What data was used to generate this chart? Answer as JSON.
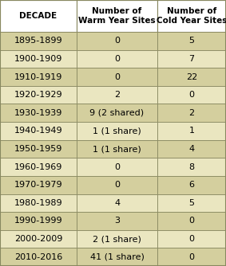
{
  "col_headers": [
    "DECADE",
    "Number of\nWarm Year Sites",
    "Number of\nCold Year Sites"
  ],
  "rows": [
    [
      "1895-1899",
      "0",
      "5"
    ],
    [
      "1900-1909",
      "0",
      "7"
    ],
    [
      "1910-1919",
      "0",
      "22"
    ],
    [
      "1920-1929",
      "2",
      "0"
    ],
    [
      "1930-1939",
      "9 (2 shared)",
      "2"
    ],
    [
      "1940-1949",
      "1 (1 share)",
      "1"
    ],
    [
      "1950-1959",
      "1 (1 share)",
      "4"
    ],
    [
      "1960-1969",
      "0",
      "8"
    ],
    [
      "1970-1979",
      "0",
      "6"
    ],
    [
      "1980-1989",
      "4",
      "5"
    ],
    [
      "1990-1999",
      "3",
      "0"
    ],
    [
      "2000-2009",
      "2 (1 share)",
      "0"
    ],
    [
      "2010-2016",
      "41 (1 share)",
      "0"
    ]
  ],
  "bg_color_odd": "#d4cf9e",
  "bg_color_even": "#eae6c0",
  "header_bg": "#ffffff",
  "border_color": "#888860",
  "header_font_size": 7.5,
  "cell_font_size": 8.0,
  "fig_width": 2.83,
  "fig_height": 3.34,
  "dpi": 100
}
